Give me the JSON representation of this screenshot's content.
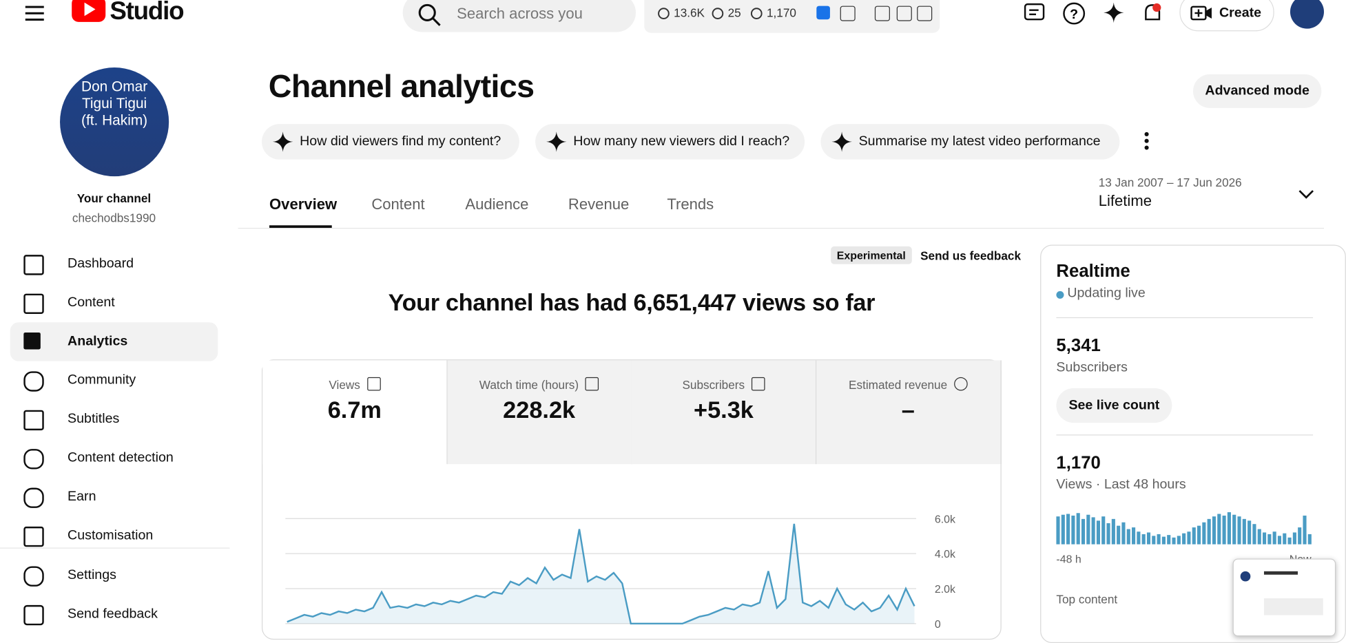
{
  "header": {
    "logo_text": "Studio",
    "search_placeholder": "Search across you",
    "stats": [
      "13.6K",
      "25",
      "1,170"
    ],
    "create": "Create"
  },
  "sidebar": {
    "avatar_text": [
      "Don Omar",
      "Tigui Tigui",
      "(ft. Hakim)"
    ],
    "channel_label": "Your channel",
    "handle": "chechodbs1990",
    "nav": [
      "Dashboard",
      "Content",
      "Analytics",
      "Community",
      "Subtitles",
      "Content detection",
      "Earn",
      "Customisation"
    ],
    "footer_nav": [
      "Settings",
      "Send feedback"
    ]
  },
  "page": {
    "title": "Channel analytics",
    "advanced_mode": "Advanced mode",
    "suggestions": [
      "How did viewers find my content?",
      "How many new viewers did I reach?",
      "Summarise my latest video performance"
    ],
    "tabs": [
      "Overview",
      "Content",
      "Audience",
      "Revenue",
      "Trends"
    ],
    "date_range": "13 Jan 2007 – 17 Jun 2026",
    "period": "Lifetime",
    "experimental": "Experimental",
    "feedback": "Send us feedback",
    "headline": "Your channel has had 6,651,447 views so far",
    "metrics": [
      {
        "label": "Views",
        "value": "6.7m"
      },
      {
        "label": "Watch time (hours)",
        "value": "228.2k"
      },
      {
        "label": "Subscribers",
        "value": "+5.3k"
      },
      {
        "label": "Estimated revenue",
        "value": "–"
      }
    ]
  },
  "views_chart": {
    "type": "line",
    "color": "#4a9cc4",
    "values": [
      100,
      300,
      500,
      400,
      600,
      500,
      700,
      600,
      800,
      700,
      900,
      1800,
      900,
      1000,
      900,
      1100,
      1000,
      1200,
      1100,
      1300,
      1200,
      1400,
      1600,
      1500,
      1800,
      1700,
      2400,
      2200,
      2600,
      2300,
      3200,
      2500,
      2800,
      2600,
      5400,
      2400,
      2700,
      2500,
      2900,
      2300,
      0,
      0,
      0,
      0,
      0,
      0,
      0,
      200,
      400,
      500,
      700,
      900,
      800,
      1100,
      1000,
      1200,
      3000,
      900,
      1400,
      5700,
      1200,
      1000,
      1300,
      900,
      2000,
      1100,
      800,
      1200,
      700,
      900,
      1600,
      800,
      2000,
      1000
    ],
    "ylim": [
      0,
      6000
    ],
    "yticks": [
      0,
      {
        "value": 2000,
        "label": "2.0k"
      },
      {
        "value": 4000,
        "label": "4.0k"
      },
      {
        "value": 6000,
        "label": "6.0k"
      }
    ],
    "grid": true
  },
  "realtime": {
    "title": "Realtime",
    "status": "Updating live",
    "subscribers": "5,341",
    "subscribers_label": "Subscribers",
    "live_count_button": "See live count",
    "views": "1,170",
    "views_label": "Views · Last 48 hours",
    "chart": {
      "type": "bar",
      "color": "#4a9cc4",
      "values": [
        33,
        35,
        36,
        34,
        37,
        30,
        35,
        32,
        28,
        33,
        25,
        30,
        22,
        26,
        18,
        20,
        15,
        12,
        14,
        10,
        12,
        9,
        11,
        8,
        10,
        13,
        15,
        20,
        22,
        26,
        30,
        33,
        36,
        34,
        38,
        35,
        33,
        30,
        28,
        24,
        18,
        14,
        12,
        15,
        10,
        13,
        8,
        14,
        20,
        34,
        12
      ],
      "ylim": [
        0,
        40
      ],
      "x_start_label": "-48 h",
      "x_end_label": "Now"
    },
    "top_content": "Top content"
  }
}
